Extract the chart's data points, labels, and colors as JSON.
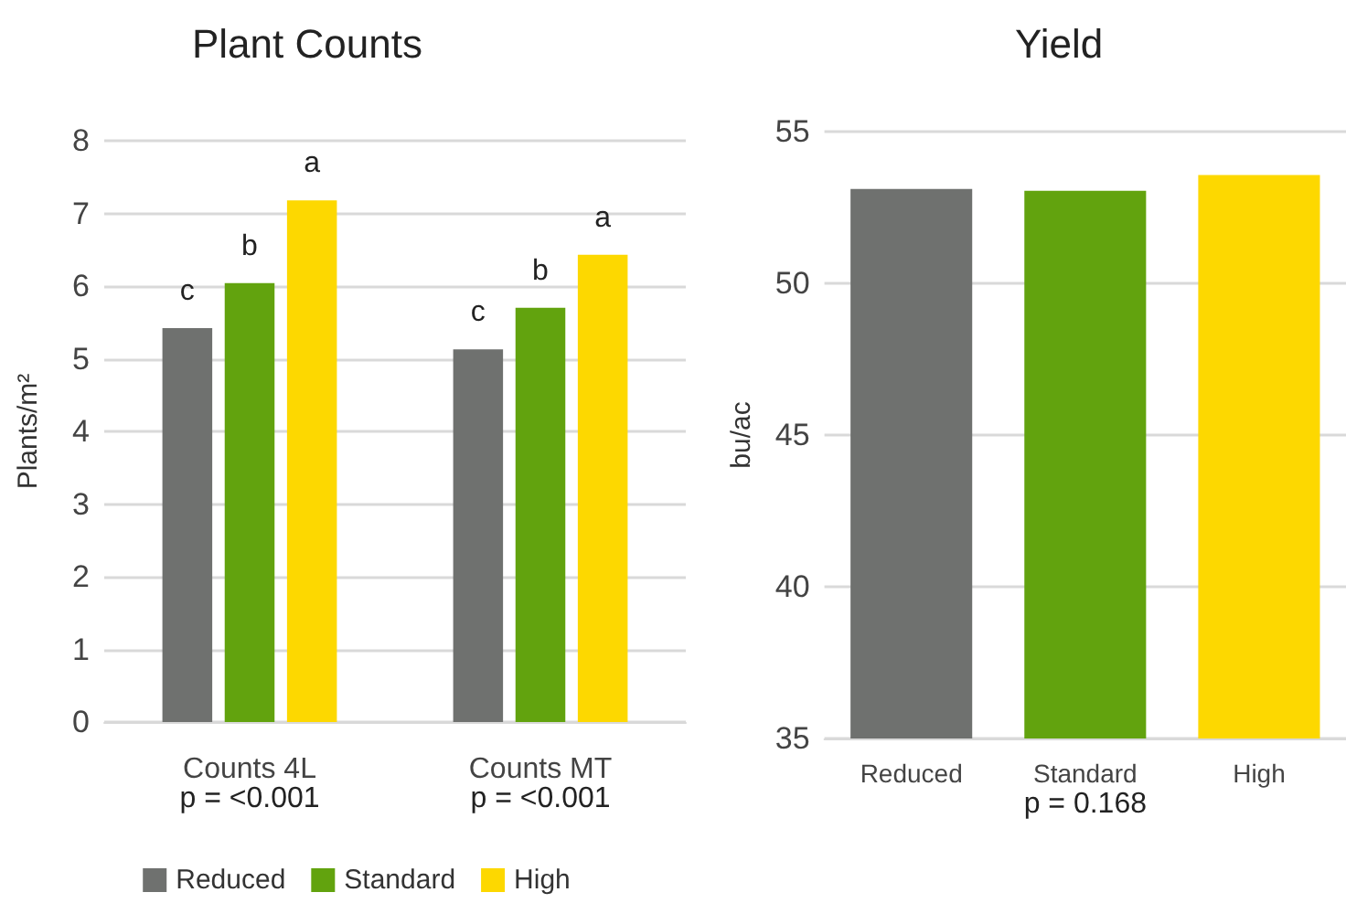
{
  "chart_data": [
    {
      "type": "bar",
      "title": "Plant Counts",
      "ylabel": "Plants/m²",
      "categories": [
        "Counts 4L",
        "Counts MT"
      ],
      "series": [
        {
          "name": "Reduced",
          "color": "#6f716f",
          "values": [
            5.42,
            5.13
          ],
          "value_labels": [
            "c",
            "c"
          ]
        },
        {
          "name": "Standard",
          "color": "#62a30e",
          "values": [
            6.04,
            5.7
          ],
          "value_labels": [
            "b",
            "b"
          ]
        },
        {
          "name": "High",
          "color": "#fdd800",
          "values": [
            7.18,
            6.43
          ],
          "value_labels": [
            "a",
            "a"
          ]
        }
      ],
      "ylim": [
        0,
        8
      ],
      "yticks": [
        0,
        1,
        2,
        3,
        4,
        5,
        6,
        7,
        8
      ],
      "grid": "y",
      "legend": "bottom",
      "annotations": [
        "p = <0.001",
        "p = <0.001"
      ]
    },
    {
      "type": "bar",
      "title": "Yield",
      "ylabel": "bu/ac",
      "categories": [
        "Reduced",
        "Standard",
        "High"
      ],
      "values": [
        53.11,
        53.05,
        53.57
      ],
      "colors": [
        "#6f716f",
        "#62a30e",
        "#fdd800"
      ],
      "ylim": [
        35,
        55
      ],
      "yticks": [
        35,
        40,
        45,
        50,
        55
      ],
      "grid": "y",
      "legend": false,
      "annotations": [
        "p = 0.168"
      ]
    }
  ]
}
